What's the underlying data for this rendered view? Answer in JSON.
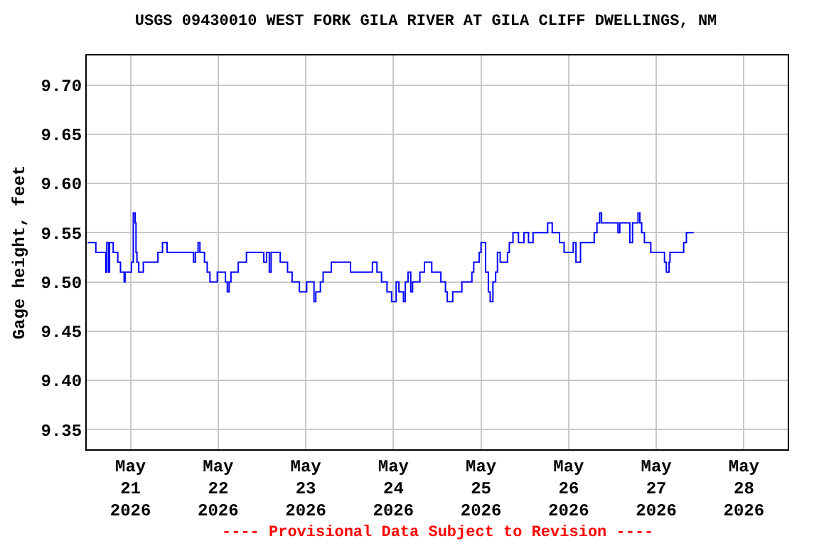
{
  "chart_data": {
    "type": "step",
    "title": "USGS 09430010 WEST FORK GILA RIVER AT GILA CLIFF DWELLINGS, NM",
    "ylabel": "Gage height, feet",
    "annotations": [
      "---- Provisional Data Subject to Revision ----"
    ],
    "x": [
      "2026-05-20T12:15",
      "2026-05-20T14:30",
      "2026-05-20T17:15",
      "2026-05-20T17:30",
      "2026-05-20T18:00",
      "2026-05-20T18:15",
      "2026-05-20T19:15",
      "2026-05-20T20:30",
      "2026-05-20T21:15",
      "2026-05-20T22:15",
      "2026-05-20T22:30",
      "2026-05-21T00:15",
      "2026-05-21T00:45",
      "2026-05-21T01:15",
      "2026-05-21T01:30",
      "2026-05-21T01:45",
      "2026-05-21T02:15",
      "2026-05-21T03:30",
      "2026-05-21T07:30",
      "2026-05-21T08:45",
      "2026-05-21T10:00",
      "2026-05-21T17:15",
      "2026-05-21T17:45",
      "2026-05-21T18:30",
      "2026-05-21T19:00",
      "2026-05-21T20:15",
      "2026-05-21T21:00",
      "2026-05-21T21:45",
      "2026-05-21T23:45",
      "2026-05-22T02:00",
      "2026-05-22T02:30",
      "2026-05-22T03:00",
      "2026-05-22T03:30",
      "2026-05-22T05:30",
      "2026-05-22T07:45",
      "2026-05-22T12:30",
      "2026-05-22T13:15",
      "2026-05-22T14:00",
      "2026-05-22T14:30",
      "2026-05-22T17:00",
      "2026-05-22T19:00",
      "2026-05-22T20:15",
      "2026-05-22T22:15",
      "2026-05-23T00:15",
      "2026-05-23T02:15",
      "2026-05-23T02:45",
      "2026-05-23T04:00",
      "2026-05-23T04:45",
      "2026-05-23T07:00",
      "2026-05-23T12:15",
      "2026-05-23T18:15",
      "2026-05-23T19:30",
      "2026-05-23T20:45",
      "2026-05-23T22:15",
      "2026-05-23T23:30",
      "2026-05-24T00:45",
      "2026-05-24T01:30",
      "2026-05-24T02:45",
      "2026-05-24T03:15",
      "2026-05-24T04:00",
      "2026-05-24T04:45",
      "2026-05-24T05:15",
      "2026-05-24T07:15",
      "2026-05-24T08:30",
      "2026-05-24T10:30",
      "2026-05-24T13:00",
      "2026-05-24T14:15",
      "2026-05-24T14:45",
      "2026-05-24T16:15",
      "2026-05-24T18:45",
      "2026-05-24T21:30",
      "2026-05-24T22:00",
      "2026-05-24T23:30",
      "2026-05-25T00:00",
      "2026-05-25T01:15",
      "2026-05-25T02:00",
      "2026-05-25T02:30",
      "2026-05-25T03:15",
      "2026-05-25T04:00",
      "2026-05-25T04:30",
      "2026-05-25T05:15",
      "2026-05-25T07:15",
      "2026-05-25T07:45",
      "2026-05-25T08:45",
      "2026-05-25T10:15",
      "2026-05-25T11:45",
      "2026-05-25T13:00",
      "2026-05-25T14:15",
      "2026-05-25T18:15",
      "2026-05-25T19:30",
      "2026-05-25T21:30",
      "2026-05-25T22:45",
      "2026-05-26T01:15",
      "2026-05-26T02:00",
      "2026-05-26T03:15",
      "2026-05-26T07:00",
      "2026-05-26T07:45",
      "2026-05-26T08:30",
      "2026-05-26T09:00",
      "2026-05-26T13:30",
      "2026-05-26T14:00",
      "2026-05-26T16:45",
      "2026-05-26T17:30",
      "2026-05-26T19:00",
      "2026-05-26T19:30",
      "2026-05-26T20:00",
      "2026-05-26T20:45",
      "2026-05-26T22:30",
      "2026-05-27T02:15",
      "2026-05-27T02:45",
      "2026-05-27T03:30",
      "2026-05-27T03:45",
      "2026-05-27T07:30",
      "2026-05-27T08:15",
      "2026-05-27T10:15"
    ],
    "series": [
      {
        "color": "#0000ff",
        "values": [
          9.54,
          9.53,
          9.51,
          9.54,
          9.51,
          9.54,
          9.53,
          9.52,
          9.51,
          9.5,
          9.51,
          9.52,
          9.57,
          9.56,
          9.53,
          9.52,
          9.51,
          9.52,
          9.53,
          9.54,
          9.53,
          9.52,
          9.53,
          9.54,
          9.53,
          9.52,
          9.51,
          9.5,
          9.51,
          9.5,
          9.49,
          9.5,
          9.51,
          9.52,
          9.53,
          9.52,
          9.53,
          9.51,
          9.53,
          9.52,
          9.51,
          9.5,
          9.49,
          9.5,
          9.48,
          9.49,
          9.5,
          9.51,
          9.52,
          9.51,
          9.52,
          9.51,
          9.5,
          9.49,
          9.48,
          9.5,
          9.49,
          9.48,
          9.5,
          9.51,
          9.49,
          9.5,
          9.51,
          9.52,
          9.51,
          9.5,
          9.49,
          9.48,
          9.49,
          9.5,
          9.51,
          9.52,
          9.53,
          9.54,
          9.51,
          9.49,
          9.48,
          9.5,
          9.51,
          9.53,
          9.52,
          9.53,
          9.54,
          9.55,
          9.54,
          9.55,
          9.54,
          9.55,
          9.56,
          9.55,
          9.54,
          9.53,
          9.54,
          9.52,
          9.54,
          9.55,
          9.56,
          9.57,
          9.56,
          9.55,
          9.56,
          9.54,
          9.56,
          9.57,
          9.56,
          9.55,
          9.54,
          9.53,
          9.52,
          9.51,
          9.52,
          9.53,
          9.54,
          9.55,
          9.55
        ]
      }
    ],
    "xlim": [
      "2026-05-20T12:00",
      "2026-05-28T12:00"
    ],
    "xticks": [
      {
        "value": "2026-05-21",
        "label": "May\n21\n2026"
      },
      {
        "value": "2026-05-22",
        "label": "May\n22\n2026"
      },
      {
        "value": "2026-05-23",
        "label": "May\n23\n2026"
      },
      {
        "value": "2026-05-24",
        "label": "May\n24\n2026"
      },
      {
        "value": "2026-05-25",
        "label": "May\n25\n2026"
      },
      {
        "value": "2026-05-26",
        "label": "May\n26\n2026"
      },
      {
        "value": "2026-05-27",
        "label": "May\n27\n2026"
      },
      {
        "value": "2026-05-28",
        "label": "May\n28\n2026"
      }
    ],
    "ylim": [
      9.33,
      9.73
    ],
    "yticks": [
      {
        "value": 9.35,
        "label": "9.35"
      },
      {
        "value": 9.4,
        "label": "9.40"
      },
      {
        "value": 9.45,
        "label": "9.45"
      },
      {
        "value": 9.5,
        "label": "9.50"
      },
      {
        "value": 9.55,
        "label": "9.55"
      },
      {
        "value": 9.6,
        "label": "9.60"
      },
      {
        "value": 9.65,
        "label": "9.65"
      },
      {
        "value": 9.7,
        "label": "9.70"
      }
    ],
    "grid": true
  }
}
